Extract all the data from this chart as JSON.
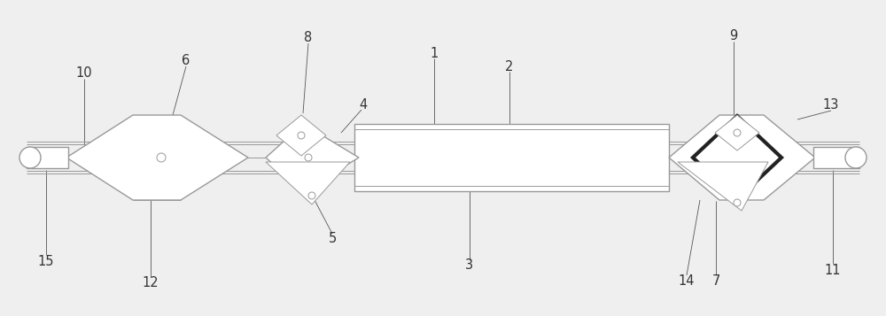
{
  "bg_color": "#efefef",
  "lc": "#999999",
  "dc": "#555555",
  "thk": "#222222",
  "lw_thin": 0.7,
  "lw_med": 1.0,
  "lw_thick": 3.0,
  "lbl_lw": 0.6,
  "lbl_color": "#555555",
  "lbl_fontsize": 10.5
}
